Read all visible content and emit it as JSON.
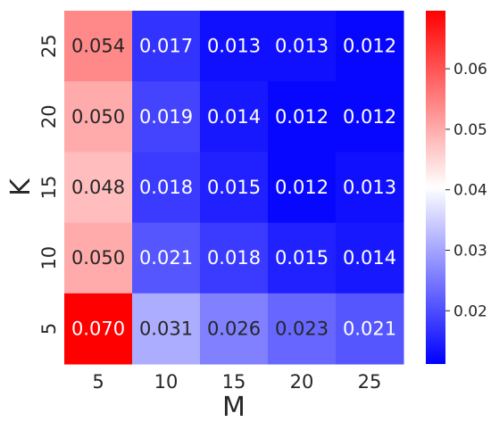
{
  "chart_data": {
    "type": "heatmap",
    "xlabel": "M",
    "ylabel": "K",
    "x_categories": [
      "5",
      "10",
      "15",
      "20",
      "25"
    ],
    "y_categories": [
      "25",
      "20",
      "15",
      "10",
      "5"
    ],
    "values": [
      [
        0.054,
        0.017,
        0.013,
        0.013,
        0.012
      ],
      [
        0.05,
        0.019,
        0.014,
        0.012,
        0.012
      ],
      [
        0.048,
        0.018,
        0.015,
        0.012,
        0.013
      ],
      [
        0.05,
        0.021,
        0.018,
        0.015,
        0.014
      ],
      [
        0.07,
        0.031,
        0.026,
        0.023,
        0.021
      ]
    ],
    "value_labels": [
      [
        "0.054",
        "0.017",
        "0.013",
        "0.013",
        "0.012"
      ],
      [
        "0.050",
        "0.019",
        "0.014",
        "0.012",
        "0.012"
      ],
      [
        "0.048",
        "0.018",
        "0.015",
        "0.012",
        "0.013"
      ],
      [
        "0.050",
        "0.021",
        "0.018",
        "0.015",
        "0.014"
      ],
      [
        "0.070",
        "0.031",
        "0.026",
        "0.023",
        "0.021"
      ]
    ],
    "colormap": "bwr",
    "color_range": [
      0.0112,
      0.0696
    ],
    "colorbar_ticks": [
      0.02,
      0.03,
      0.04,
      0.05,
      0.06
    ],
    "colorbar_tick_labels": [
      "0.02",
      "0.03",
      "0.04",
      "0.05",
      "0.06"
    ],
    "colors": {
      "low": "#0000ff",
      "mid": "#ffffff",
      "high": "#ff0000",
      "text_dark": "#262626",
      "text_light": "#ffffff"
    }
  }
}
